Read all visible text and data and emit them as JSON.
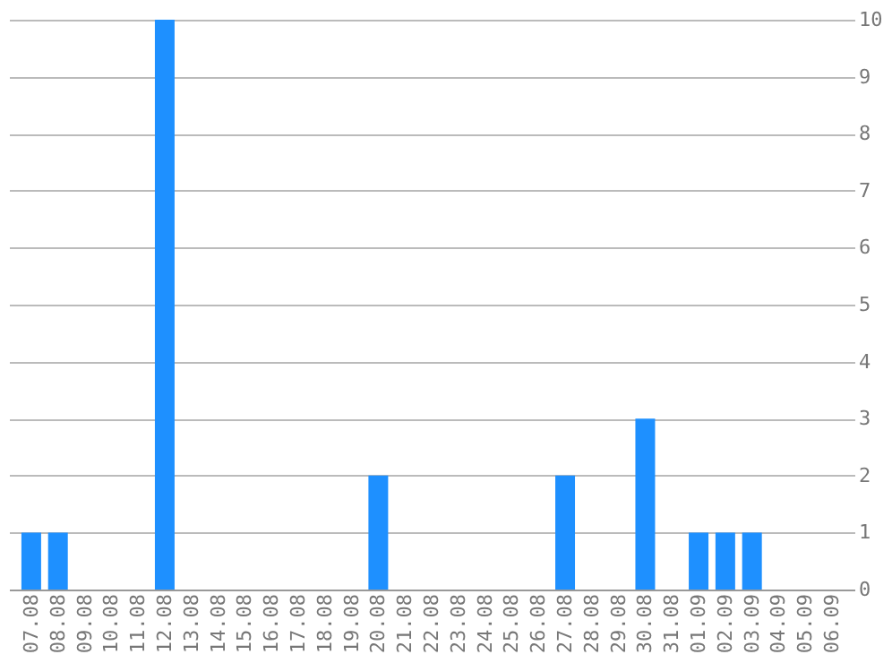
{
  "chart_data": {
    "type": "bar",
    "categories": [
      "07.08",
      "08.08",
      "09.08",
      "10.08",
      "11.08",
      "12.08",
      "13.08",
      "14.08",
      "15.08",
      "16.08",
      "17.08",
      "18.08",
      "19.08",
      "20.08",
      "21.08",
      "22.08",
      "23.08",
      "24.08",
      "25.08",
      "26.08",
      "27.08",
      "28.08",
      "29.08",
      "30.08",
      "31.08",
      "01.09",
      "02.09",
      "03.09",
      "04.09",
      "05.09",
      "06.09"
    ],
    "values": [
      1,
      1,
      0,
      0,
      0,
      10,
      0,
      0,
      0,
      0,
      0,
      0,
      0,
      2,
      0,
      0,
      0,
      0,
      0,
      0,
      2,
      0,
      0,
      3,
      0,
      1,
      1,
      1,
      0,
      0,
      0
    ],
    "color": "#1e90ff",
    "ylim": [
      0,
      10
    ],
    "yticks": [
      0,
      1,
      2,
      3,
      4,
      5,
      6,
      7,
      8,
      9,
      10
    ],
    "grid": "y"
  }
}
